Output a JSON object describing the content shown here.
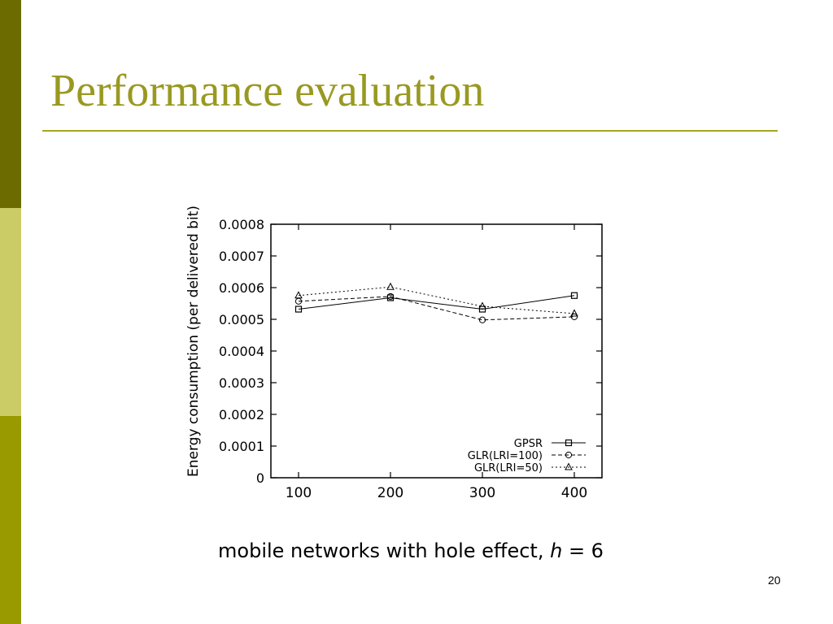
{
  "slide": {
    "title": "Performance evaluation",
    "caption_main": "mobile networks with hole effect, ",
    "caption_var": "h",
    "caption_tail": " = 6",
    "page_number": "20"
  },
  "colors": {
    "title": "#999922",
    "rule": "#a6a61f",
    "sidebar_top": "#6b6b00",
    "sidebar_mid": "#cccc66",
    "sidebar_bottom": "#999900"
  },
  "chart_data": {
    "type": "line",
    "title": "",
    "xlabel": "",
    "ylabel": "Energy consumption (per delivered bit)",
    "x": [
      100,
      200,
      300,
      400
    ],
    "xticks": [
      "100",
      "200",
      "300",
      "400"
    ],
    "ylim": [
      0,
      0.0008
    ],
    "yticks": [
      "0",
      "0.0001",
      "0.0002",
      "0.0003",
      "0.0004",
      "0.0005",
      "0.0006",
      "0.0007",
      "0.0008"
    ],
    "grid": false,
    "legend_position": "bottom-right",
    "series": [
      {
        "name": "GPSR",
        "marker": "square",
        "dash": "solid",
        "values": [
          0.000532,
          0.000568,
          0.000532,
          0.000575
        ]
      },
      {
        "name": "GLR(LRI=100)",
        "marker": "circle",
        "dash": "dashed",
        "values": [
          0.000557,
          0.000572,
          0.000498,
          0.000508
        ]
      },
      {
        "name": "GLR(LRI=50)",
        "marker": "triangle",
        "dash": "dotted",
        "values": [
          0.000575,
          0.000602,
          0.000541,
          0.000518
        ]
      }
    ]
  }
}
